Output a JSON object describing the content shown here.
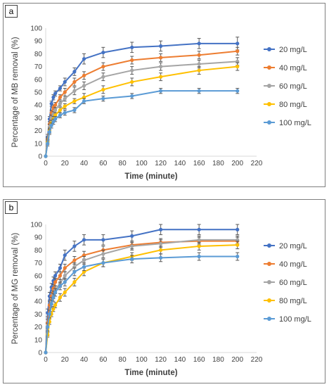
{
  "chart_data": [
    {
      "panel_label": "a",
      "type": "line",
      "xlabel": "Time (minute)",
      "ylabel": "Percentage of MB removal (%)",
      "xlim": [
        0,
        220
      ],
      "ylim": [
        0,
        100
      ],
      "x_ticks": [
        "0",
        "20",
        "40",
        "60",
        "80",
        "100",
        "120",
        "140",
        "160",
        "180",
        "200",
        "220"
      ],
      "y_ticks": [
        "0",
        "10",
        "20",
        "30",
        "40",
        "50",
        "60",
        "70",
        "80",
        "90",
        "100"
      ],
      "grid": false,
      "legend_position": "right",
      "x": [
        0,
        2,
        4,
        6,
        8,
        10,
        15,
        20,
        30,
        40,
        60,
        90,
        120,
        160,
        200
      ],
      "series": [
        {
          "name": "20 mg/L",
          "color": "#4472C4",
          "values": [
            0,
            15,
            29,
            41,
            46,
            49,
            53,
            58,
            66,
            76,
            81,
            85,
            86,
            88,
            88
          ],
          "error": [
            0,
            2,
            2,
            2,
            2,
            2,
            2,
            3,
            3,
            4,
            4,
            4,
            4,
            4,
            5
          ]
        },
        {
          "name": "40 mg/L",
          "color": "#ED7D31",
          "values": [
            0,
            13,
            25,
            34,
            38,
            40,
            46,
            50,
            58,
            63,
            70,
            75,
            77,
            79,
            82
          ],
          "error": [
            0,
            2,
            2,
            2,
            2,
            2,
            2,
            3,
            3,
            3,
            3,
            3,
            3,
            3,
            3
          ]
        },
        {
          "name": "60 mg/L",
          "color": "#A5A5A5",
          "values": [
            0,
            12,
            23,
            30,
            33,
            36,
            41,
            45,
            51,
            55,
            62,
            67,
            70,
            72,
            74
          ],
          "error": [
            0,
            2,
            2,
            2,
            2,
            2,
            2,
            2,
            3,
            3,
            3,
            3,
            3,
            3,
            3
          ]
        },
        {
          "name": "80 mg/L",
          "color": "#FFC000",
          "values": [
            0,
            11,
            20,
            26,
            29,
            32,
            36,
            39,
            43,
            46,
            52,
            58,
            62,
            67,
            70
          ],
          "error": [
            0,
            2,
            2,
            2,
            2,
            2,
            2,
            2,
            2,
            3,
            3,
            3,
            3,
            3,
            3
          ]
        },
        {
          "name": "100 mg/L",
          "color": "#5B9BD5",
          "values": [
            0,
            10,
            19,
            24,
            27,
            29,
            32,
            34,
            36,
            43,
            45,
            47,
            51,
            51,
            51
          ],
          "error": [
            0,
            2,
            2,
            2,
            2,
            2,
            2,
            2,
            2,
            2,
            2,
            2,
            2,
            2,
            2
          ]
        }
      ]
    },
    {
      "panel_label": "b",
      "type": "line",
      "xlabel": "Time (minute)",
      "ylabel": "Percentage of MG removal (%)",
      "xlim": [
        0,
        220
      ],
      "ylim": [
        0,
        100
      ],
      "x_ticks": [
        "0",
        "20",
        "40",
        "60",
        "80",
        "100",
        "120",
        "140",
        "160",
        "180",
        "200",
        "220"
      ],
      "y_ticks": [
        "0",
        "10",
        "20",
        "30",
        "40",
        "50",
        "60",
        "70",
        "80",
        "90",
        "100"
      ],
      "grid": false,
      "legend_position": "right",
      "x": [
        0,
        2,
        4,
        6,
        8,
        10,
        15,
        20,
        30,
        40,
        60,
        90,
        120,
        160,
        200
      ],
      "series": [
        {
          "name": "20 mg/L",
          "color": "#4472C4",
          "values": [
            0,
            31,
            44,
            51,
            56,
            60,
            66,
            76,
            83,
            88,
            88,
            91,
            96,
            96,
            96
          ],
          "error": [
            0,
            3,
            3,
            3,
            3,
            3,
            3,
            4,
            4,
            4,
            4,
            4,
            4,
            4,
            4
          ]
        },
        {
          "name": "40 mg/L",
          "color": "#ED7D31",
          "values": [
            0,
            23,
            37,
            44,
            50,
            55,
            60,
            66,
            72,
            76,
            80,
            84,
            86,
            87,
            87
          ],
          "error": [
            0,
            3,
            3,
            3,
            3,
            3,
            3,
            3,
            3,
            3,
            3,
            3,
            3,
            3,
            3
          ]
        },
        {
          "name": "60 mg/L",
          "color": "#A5A5A5",
          "values": [
            0,
            16,
            30,
            40,
            45,
            49,
            54,
            60,
            67,
            72,
            77,
            83,
            85,
            88,
            88
          ],
          "error": [
            0,
            3,
            3,
            3,
            3,
            3,
            3,
            3,
            3,
            3,
            3,
            3,
            3,
            3,
            3
          ]
        },
        {
          "name": "80 mg/L",
          "color": "#FFC000",
          "values": [
            0,
            14,
            24,
            30,
            34,
            37,
            43,
            47,
            55,
            63,
            70,
            75,
            80,
            83,
            84
          ],
          "error": [
            0,
            2,
            2,
            2,
            2,
            2,
            3,
            3,
            3,
            3,
            3,
            3,
            3,
            3,
            3
          ]
        },
        {
          "name": "100 mg/L",
          "color": "#5B9BD5",
          "values": [
            0,
            20,
            30,
            38,
            43,
            47,
            52,
            55,
            63,
            67,
            70,
            73,
            74,
            75,
            75
          ],
          "error": [
            0,
            3,
            3,
            3,
            3,
            3,
            3,
            3,
            3,
            3,
            3,
            3,
            3,
            3,
            3
          ]
        }
      ]
    }
  ]
}
